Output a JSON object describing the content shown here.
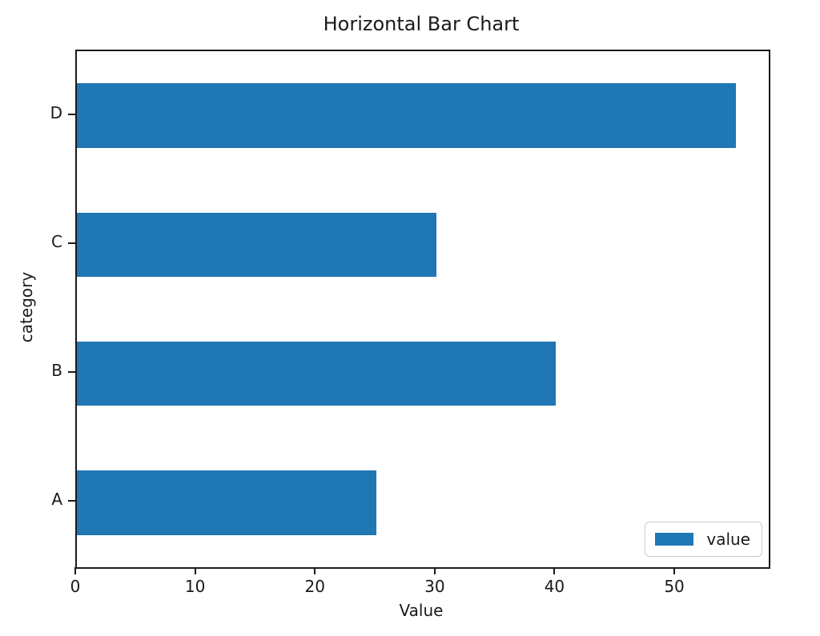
{
  "chart_data": {
    "type": "bar",
    "orientation": "horizontal",
    "title": "Horizontal Bar Chart",
    "xlabel": "Value",
    "ylabel": "category",
    "categories": [
      "A",
      "B",
      "C",
      "D"
    ],
    "series": [
      {
        "name": "value",
        "values": [
          25,
          40,
          30,
          55
        ]
      }
    ],
    "xticks": [
      0,
      10,
      20,
      30,
      40,
      50
    ],
    "xlim": [
      0,
      57.75
    ],
    "bar_color": "#1f77b4",
    "bar_height_fraction": 0.5,
    "grid": false,
    "legend": {
      "label": "value",
      "position": "lower right"
    }
  }
}
